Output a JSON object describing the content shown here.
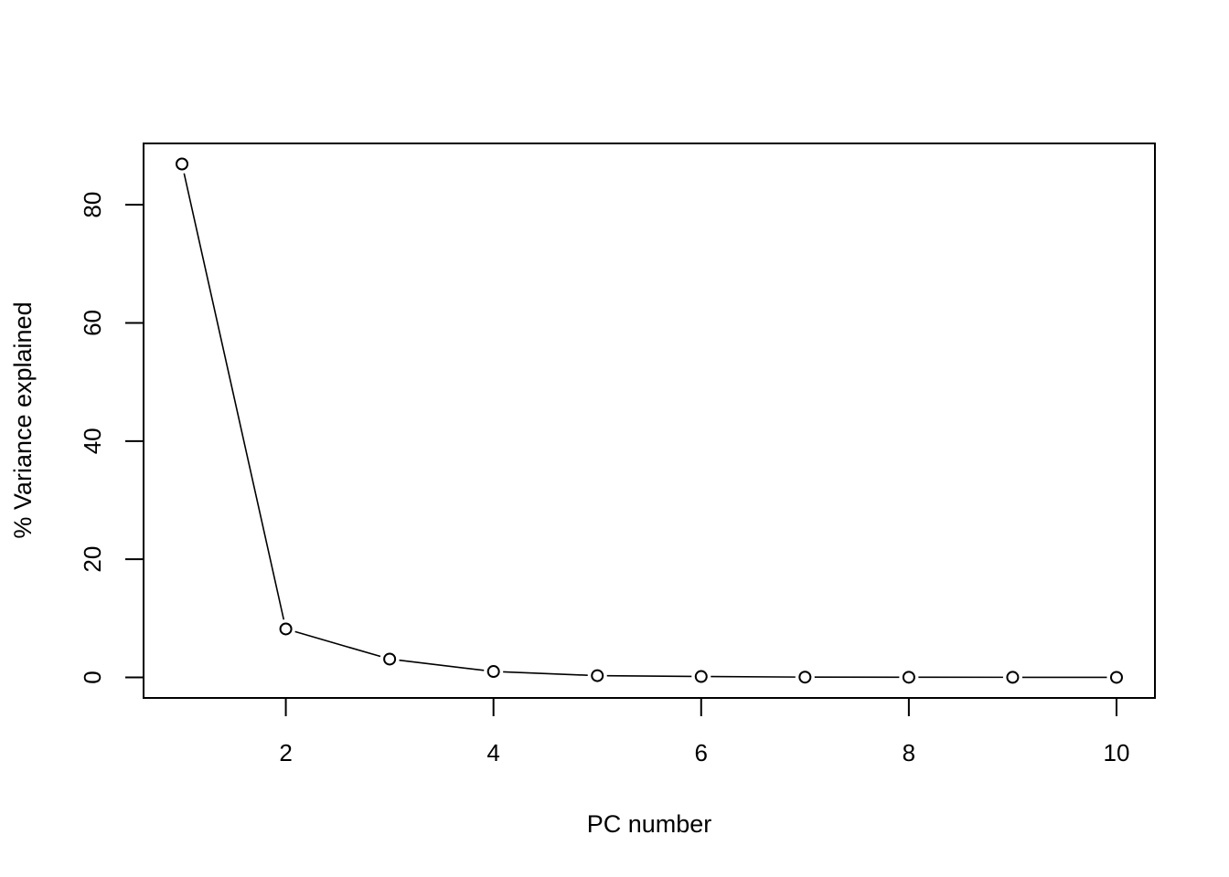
{
  "chart_data": {
    "type": "line",
    "title": "",
    "xlabel": "PC number",
    "ylabel": "% Variance explained",
    "x": [
      1,
      2,
      3,
      4,
      5,
      6,
      7,
      8,
      9,
      10
    ],
    "series": [
      {
        "values": [
          86.9,
          8.2,
          3.1,
          1.0,
          0.3,
          0.15,
          0.05,
          0.03,
          0.02,
          0.01
        ]
      }
    ],
    "x_ticks": [
      2,
      4,
      6,
      8,
      10
    ],
    "y_ticks": [
      0,
      20,
      40,
      60,
      80
    ],
    "xlim": [
      0.63,
      10.37
    ],
    "ylim": [
      -3.476,
      90.38
    ],
    "markers": "open-circle",
    "grid": false,
    "legend": "none",
    "colors": {
      "line": "#000000",
      "marker_fill": "#ffffff",
      "frame": "#000000"
    }
  }
}
